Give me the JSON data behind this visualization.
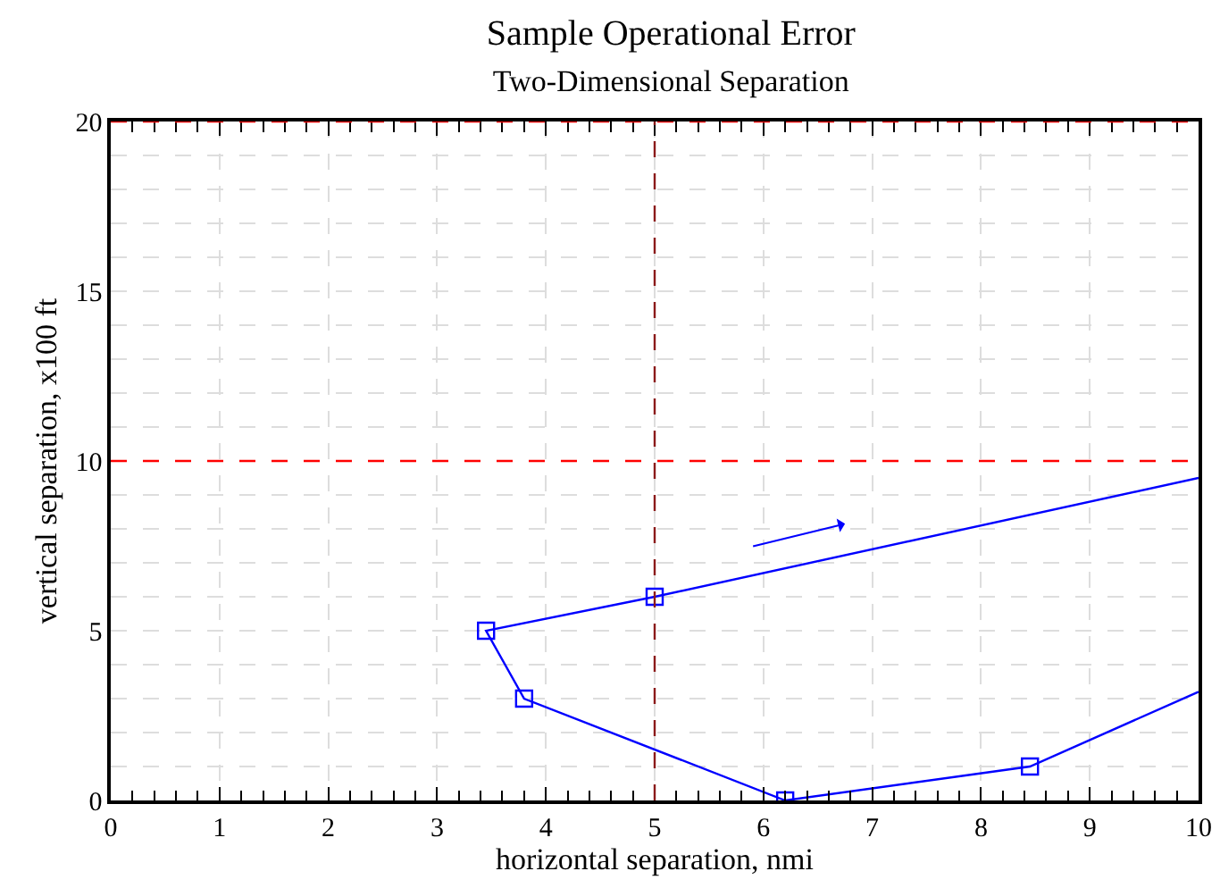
{
  "chart_data": {
    "type": "line",
    "title": "Sample Operational Error",
    "subtitle": "Two-Dimensional Separation",
    "xlabel": "horizontal separation, nmi",
    "ylabel": "vertical separation, x100 ft",
    "series": [
      {
        "color": "#0000ff",
        "marker": "none",
        "x": [
          10,
          8.45,
          6.2,
          3.8,
          3.45,
          5,
          10
        ],
        "values": [
          3.2,
          1,
          0,
          3,
          5,
          6,
          9.5
        ]
      },
      {
        "type": "scatter",
        "color": "#0000ff",
        "marker": "square",
        "x": [
          8.45,
          6.2,
          3.8,
          3.45,
          5
        ],
        "values": [
          1,
          0,
          3,
          5,
          6
        ]
      }
    ],
    "xlim": [
      0,
      10
    ],
    "xticks": [
      0,
      1,
      2,
      3,
      4,
      5,
      6,
      7,
      8,
      9,
      10
    ],
    "ylim": [
      0,
      20
    ],
    "yticks": [
      0,
      {
        "value": 1,
        "label": null
      },
      {
        "value": 2,
        "label": null
      },
      {
        "value": 3,
        "label": null
      },
      {
        "value": 4,
        "label": null
      },
      5,
      {
        "value": 6,
        "label": null
      },
      {
        "value": 7,
        "label": null
      },
      {
        "value": 8,
        "label": null
      },
      {
        "value": 9,
        "label": null
      },
      10,
      {
        "value": 11,
        "label": null
      },
      {
        "value": 12,
        "label": null
      },
      {
        "value": 13,
        "label": null
      },
      {
        "value": 14,
        "label": null
      },
      15,
      {
        "value": 16,
        "label": null
      },
      {
        "value": 17,
        "label": null
      },
      {
        "value": 18,
        "label": null
      },
      {
        "value": 19,
        "label": null
      },
      20
    ],
    "ref_lines": [
      {
        "axis": "y",
        "value": 10,
        "color": "#ff0000",
        "line_style": "dashed"
      },
      {
        "axis": "y",
        "value": 20,
        "color": "#ff0000",
        "line_style": "dashed"
      },
      {
        "axis": "x",
        "value": 5,
        "color": "#8b1a1a",
        "line_style": "dashed"
      }
    ],
    "grid": true
  }
}
